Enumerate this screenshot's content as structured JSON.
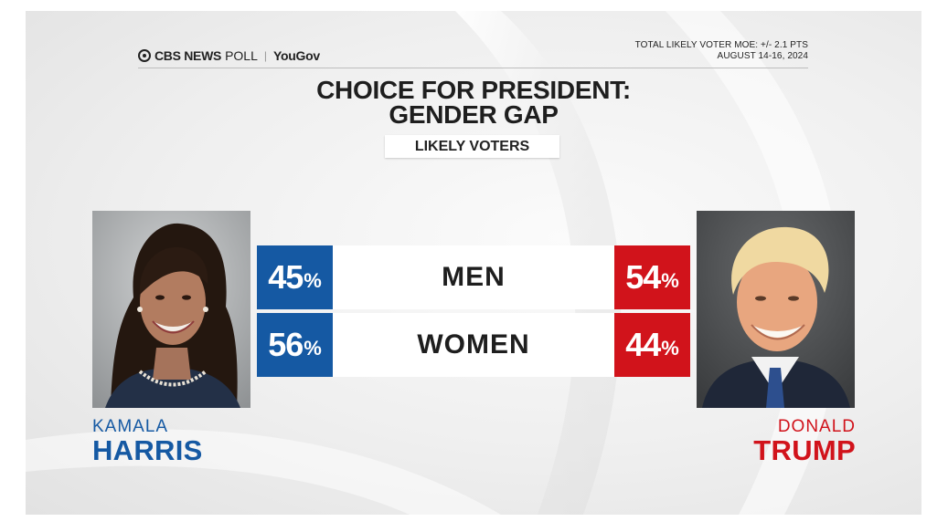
{
  "header": {
    "brand": "CBS NEWS",
    "poll": "POLL",
    "partner": "YouGov",
    "moe_line1": "TOTAL LIKELY VOTER MOE: +/- 2.1 PTS",
    "moe_line2": "AUGUST 14-16, 2024",
    "logo_icon": "cbs-eye-icon"
  },
  "colors": {
    "harris": "#1559a3",
    "trump": "#d1131b"
  },
  "candidates": {
    "harris": {
      "first": "KAMALA",
      "last": "HARRIS",
      "photo_icon": "harris-portrait-icon"
    },
    "trump": {
      "first": "DONALD",
      "last": "TRUMP",
      "photo_icon": "trump-portrait-icon"
    }
  },
  "chart_data": {
    "type": "table",
    "title": [
      "CHOICE FOR PRESIDENT:",
      "GENDER GAP"
    ],
    "subtitle": "LIKELY VOTERS",
    "unit": "%",
    "categories": [
      "MEN",
      "WOMEN"
    ],
    "series": [
      {
        "name": "HARRIS",
        "values": [
          45,
          56
        ]
      },
      {
        "name": "TRUMP",
        "values": [
          54,
          44
        ]
      }
    ]
  }
}
